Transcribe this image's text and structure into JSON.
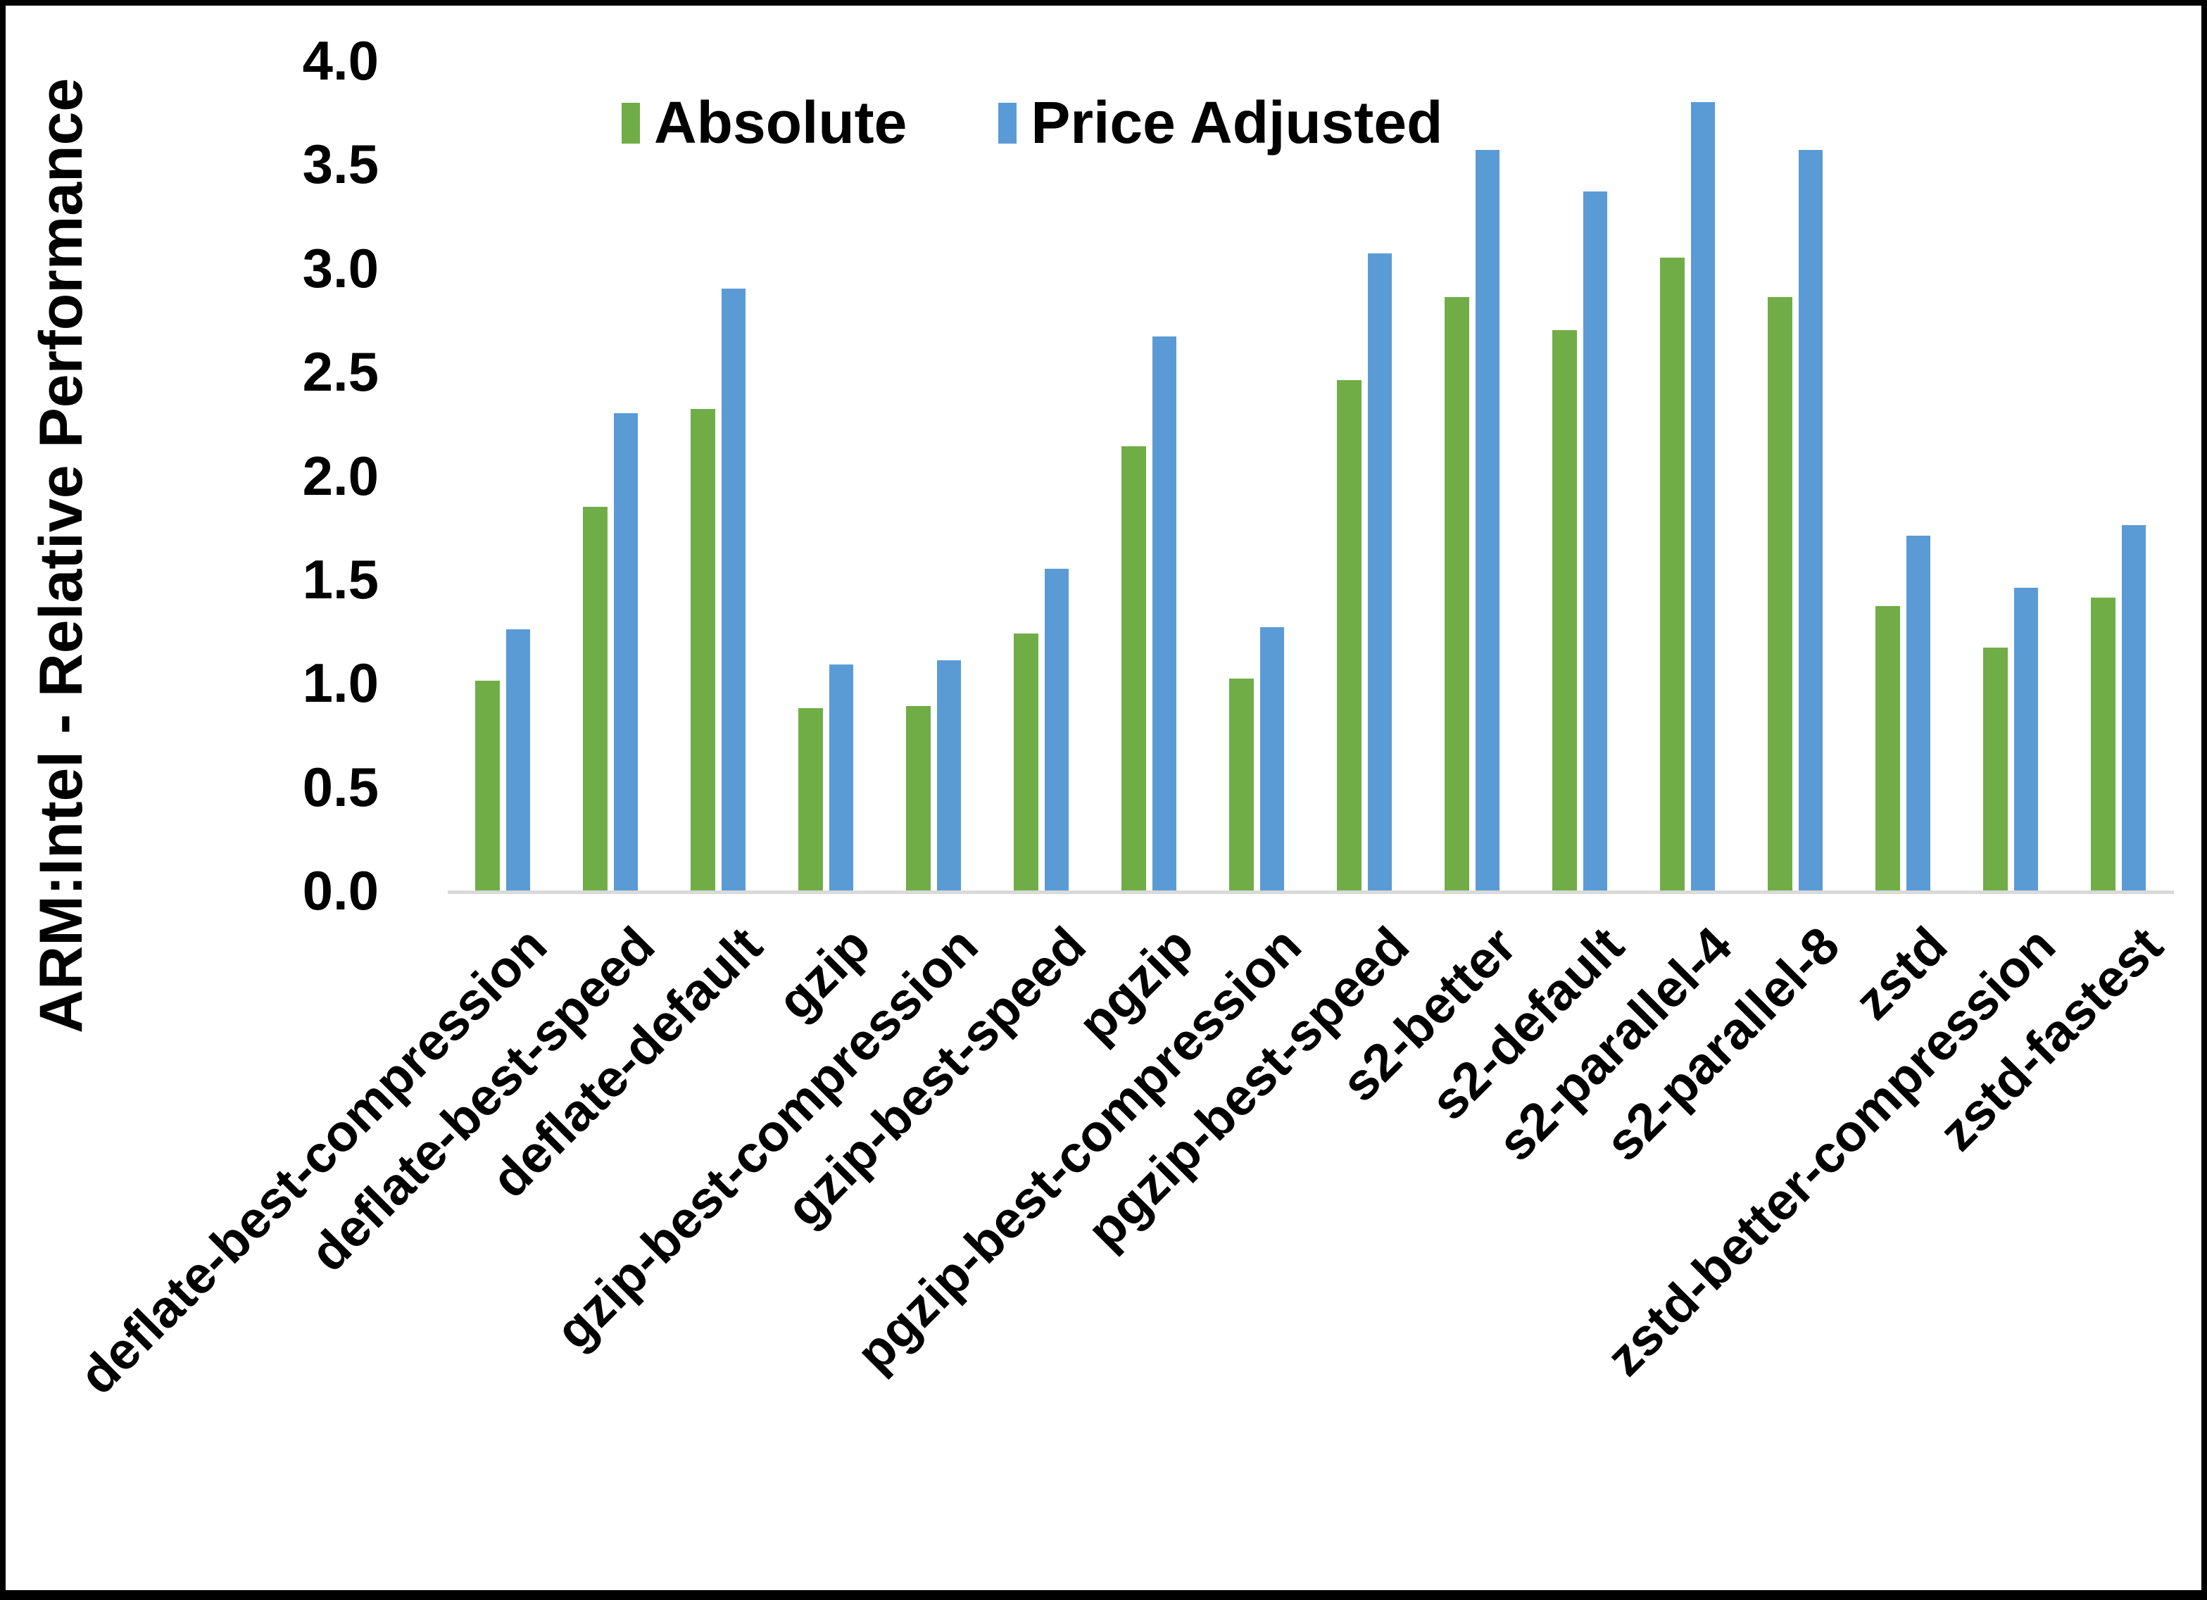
{
  "chart_data": {
    "type": "bar",
    "title": "",
    "xlabel": "",
    "ylabel": "ARM:Intel - Relative Performance",
    "ylim": [
      0.0,
      4.0
    ],
    "ytick_labels": [
      "0.0",
      "0.5",
      "1.0",
      "1.5",
      "2.0",
      "2.5",
      "3.0",
      "3.5",
      "4.0"
    ],
    "grid": false,
    "legend_position": "top-center",
    "categories": [
      "deflate-best-compression",
      "deflate-best-speed",
      "deflate-default",
      "gzip",
      "gzip-best-compression",
      "gzip-best-speed",
      "pgzip",
      "pgzip-best-compression",
      "pgzip-best-speed",
      "s2-better",
      "s2-default",
      "s2-parallel-4",
      "s2-parallel-8",
      "zstd",
      "zstd-better-compression",
      "zstd-fastest"
    ],
    "series": [
      {
        "name": "Absolute",
        "color": "#70AD47",
        "values": [
          1.01,
          1.85,
          2.32,
          0.88,
          0.89,
          1.24,
          2.14,
          1.02,
          2.46,
          2.86,
          2.7,
          3.05,
          2.86,
          1.37,
          1.17,
          1.41
        ]
      },
      {
        "name": "Price Adjusted",
        "color": "#5B9BD5",
        "values": [
          1.26,
          2.3,
          2.9,
          1.09,
          1.11,
          1.55,
          2.67,
          1.27,
          3.07,
          3.57,
          3.37,
          3.8,
          3.57,
          1.71,
          1.46,
          1.76
        ]
      }
    ],
    "axis_line_color": "#D9D9D9",
    "text_color": "#000000"
  }
}
